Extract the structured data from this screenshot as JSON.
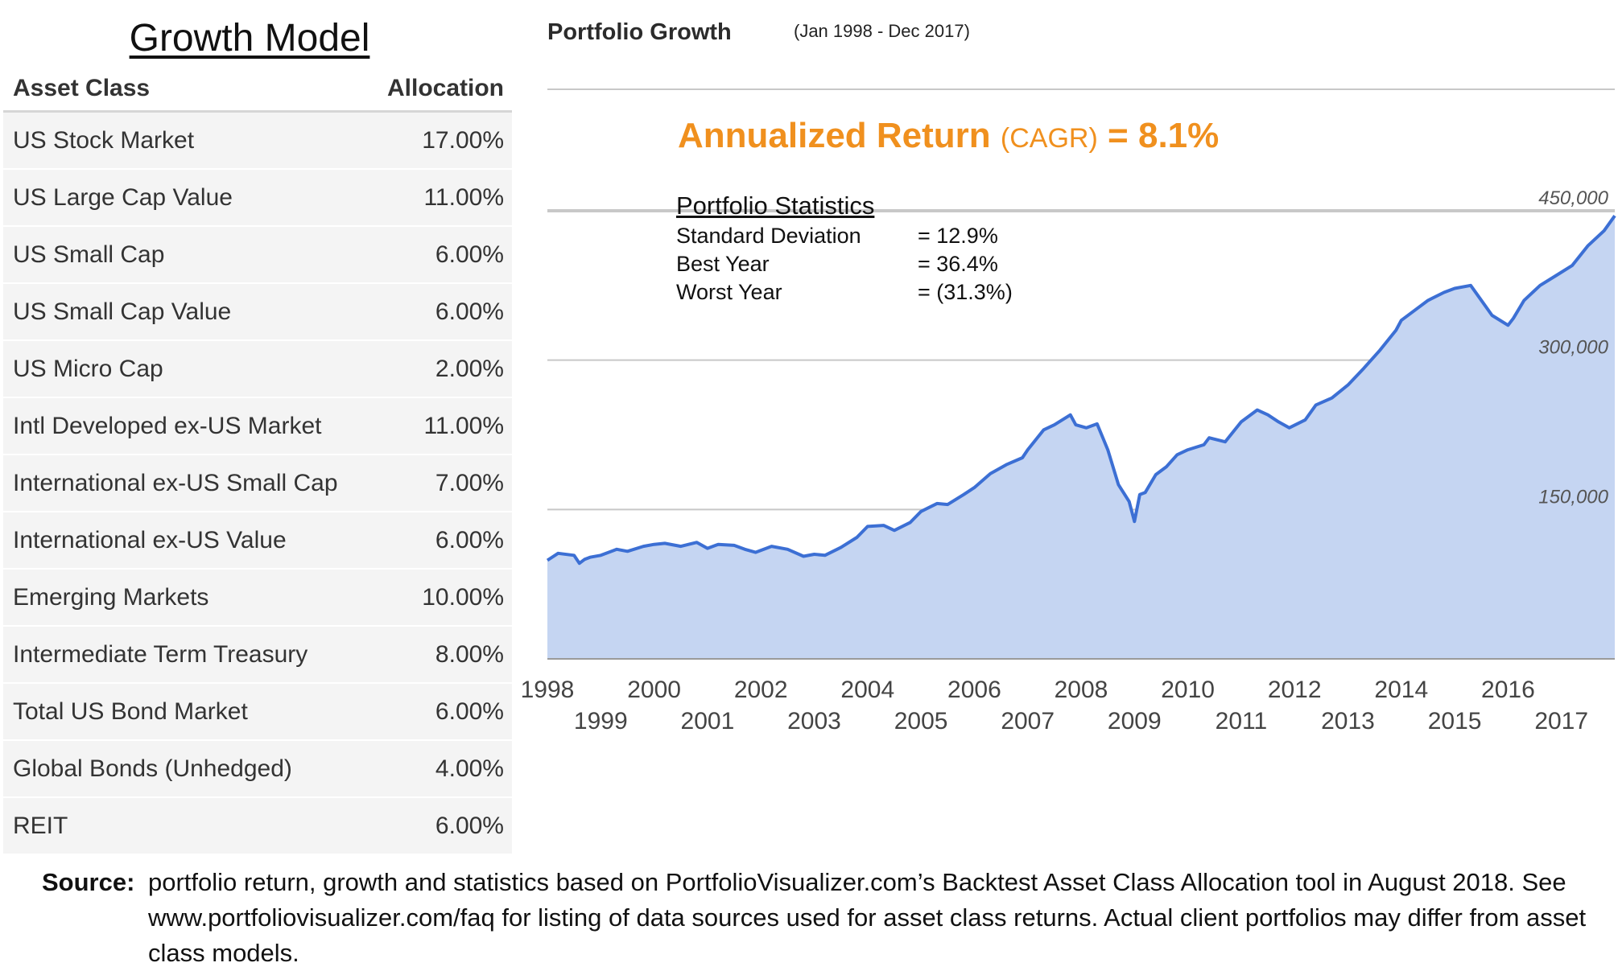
{
  "left_panel": {
    "title": "Growth Model",
    "header": {
      "asset_class": "Asset Class",
      "allocation": "Allocation"
    },
    "rows": [
      {
        "name": "US Stock Market",
        "allocation": "17.00%"
      },
      {
        "name": "US Large Cap Value",
        "allocation": "11.00%"
      },
      {
        "name": "US Small Cap",
        "allocation": "6.00%"
      },
      {
        "name": "US Small Cap Value",
        "allocation": "6.00%"
      },
      {
        "name": "US Micro Cap",
        "allocation": "2.00%"
      },
      {
        "name": "Intl Developed ex-US Market",
        "allocation": "11.00%"
      },
      {
        "name": "International ex-US Small Cap",
        "allocation": "7.00%"
      },
      {
        "name": "International ex-US Value",
        "allocation": "6.00%"
      },
      {
        "name": "Emerging Markets",
        "allocation": "10.00%"
      },
      {
        "name": "Intermediate Term Treasury",
        "allocation": "8.00%"
      },
      {
        "name": "Total US Bond Market",
        "allocation": "6.00%"
      },
      {
        "name": "Global Bonds (Unhedged)",
        "allocation": "4.00%"
      },
      {
        "name": "REIT",
        "allocation": "6.00%"
      }
    ]
  },
  "annotation": {
    "cagr_label": "Annualized Return",
    "cagr_paren": "(CAGR)",
    "cagr_value": "= 8.1%",
    "stats_title": "Portfolio Statistics",
    "stats": [
      {
        "label": "Standard Deviation",
        "value": "= 12.9%"
      },
      {
        "label": "Best Year",
        "value": "= 36.4%"
      },
      {
        "label": "Worst Year",
        "value": "= (31.3%)"
      }
    ]
  },
  "source": {
    "label": "Source:",
    "text": "portfolio return, growth and statistics based on PortfolioVisualizer.com’s Backtest Asset Class Allocation tool in August 2018. See www.portfoliovisualizer.com/faq for listing of data sources used for asset class returns. Actual client portfolios may differ from asset class models."
  },
  "colors": {
    "line": "#3c6fd4",
    "fill": "#c5d5f2",
    "gridline": "#c8c8c8",
    "accent": "#f0901e",
    "tick_label": "#555555"
  },
  "chart_data": {
    "type": "area",
    "title": "Portfolio Growth",
    "subtitle": "(Jan 1998 - Dec 2017)",
    "xlabel": "",
    "ylabel": "",
    "xlim": [
      1998,
      2018
    ],
    "ylim": [
      0,
      450000
    ],
    "y_gridlines": [
      150000,
      300000,
      450000
    ],
    "y_ticks": [
      {
        "value": 150000,
        "label": "150,000"
      },
      {
        "value": 300000,
        "label": "300,000"
      },
      {
        "value": 450000,
        "label": "450,000"
      }
    ],
    "x_ticks": [
      {
        "year": 1998,
        "label": "1998"
      },
      {
        "year": 1999,
        "label": "1999"
      },
      {
        "year": 2000,
        "label": "2000"
      },
      {
        "year": 2001,
        "label": "2001"
      },
      {
        "year": 2002,
        "label": "2002"
      },
      {
        "year": 2003,
        "label": "2003"
      },
      {
        "year": 2004,
        "label": "2004"
      },
      {
        "year": 2005,
        "label": "2005"
      },
      {
        "year": 2006,
        "label": "2006"
      },
      {
        "year": 2007,
        "label": "2007"
      },
      {
        "year": 2008,
        "label": "2008"
      },
      {
        "year": 2009,
        "label": "2009"
      },
      {
        "year": 2010,
        "label": "2010"
      },
      {
        "year": 2011,
        "label": "2011"
      },
      {
        "year": 2012,
        "label": "2012"
      },
      {
        "year": 2013,
        "label": "2013"
      },
      {
        "year": 2014,
        "label": "2014"
      },
      {
        "year": 2015,
        "label": "2015"
      },
      {
        "year": 2016,
        "label": "2016"
      },
      {
        "year": 2017,
        "label": "2017"
      }
    ],
    "grid": true,
    "legend": "none",
    "series": [
      {
        "x": [
          1998.0,
          1998.2,
          1998.5,
          1998.6,
          1998.7,
          1998.8,
          1999.0,
          1999.3,
          1999.5,
          1999.8,
          2000.0,
          2000.2,
          2000.5,
          2000.8,
          2001.0,
          2001.2,
          2001.5,
          2001.7,
          2001.9,
          2002.2,
          2002.5,
          2002.8,
          2003.0,
          2003.2,
          2003.5,
          2003.8,
          2004.0,
          2004.3,
          2004.5,
          2004.8,
          2005.0,
          2005.3,
          2005.5,
          2005.8,
          2006.0,
          2006.3,
          2006.6,
          2006.9,
          2007.0,
          2007.3,
          2007.5,
          2007.8,
          2007.9,
          2008.1,
          2008.3,
          2008.5,
          2008.7,
          2008.9,
          2009.0,
          2009.1,
          2009.2,
          2009.4,
          2009.6,
          2009.8,
          2010.0,
          2010.3,
          2010.4,
          2010.7,
          2011.0,
          2011.3,
          2011.5,
          2011.7,
          2011.9,
          2012.2,
          2012.4,
          2012.7,
          2013.0,
          2013.3,
          2013.6,
          2013.9,
          2014.0,
          2014.3,
          2014.5,
          2014.8,
          2015.0,
          2015.3,
          2015.5,
          2015.7,
          2016.0,
          2016.1,
          2016.3,
          2016.6,
          2016.9,
          2017.2,
          2017.5,
          2017.8,
          2018.0
        ],
        "y": [
          99000,
          106000,
          104000,
          96000,
          100000,
          102000,
          104000,
          110000,
          108000,
          113000,
          115000,
          116000,
          113000,
          117000,
          111000,
          115000,
          114000,
          110000,
          107000,
          113000,
          110000,
          103000,
          105000,
          104000,
          112000,
          122000,
          133000,
          134000,
          129000,
          137000,
          148000,
          156000,
          155000,
          165000,
          172000,
          186000,
          195000,
          202000,
          210000,
          230000,
          235000,
          245000,
          235000,
          232000,
          236000,
          210000,
          175000,
          158000,
          138000,
          165000,
          167000,
          185000,
          193000,
          205000,
          210000,
          215000,
          222000,
          218000,
          238000,
          250000,
          245000,
          238000,
          232000,
          240000,
          255000,
          262000,
          275000,
          292000,
          310000,
          330000,
          340000,
          352000,
          360000,
          368000,
          372000,
          375000,
          360000,
          345000,
          335000,
          342000,
          360000,
          375000,
          385000,
          395000,
          415000,
          430000,
          445000
        ]
      }
    ]
  }
}
